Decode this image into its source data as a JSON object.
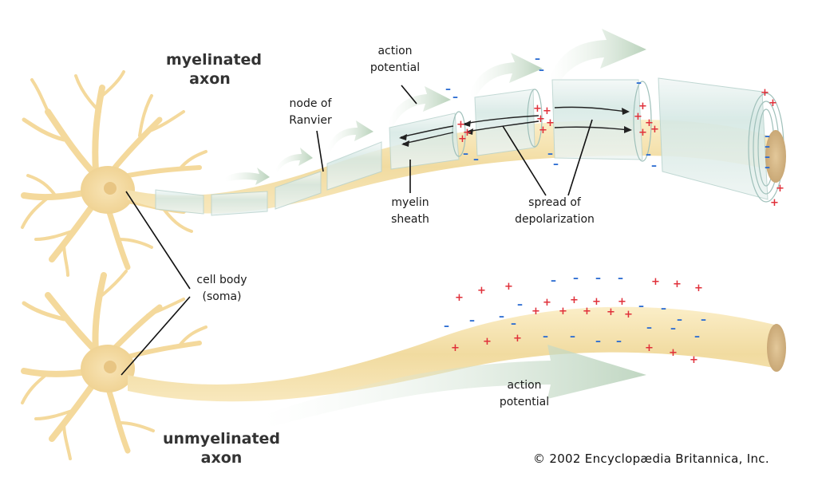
{
  "labels": {
    "myelinated_l1": "myelinated",
    "myelinated_l2": "axon",
    "action_potential_top_l1": "action",
    "action_potential_top_l2": "potential",
    "node_l1": "node of",
    "node_l2": "Ranvier",
    "myelin_l1": "myelin",
    "myelin_l2": "sheath",
    "spread_l1": "spread of",
    "spread_l2": "depolarization",
    "cell_body_l1": "cell body",
    "cell_body_l2": "(soma)",
    "action_potential_bottom_l1": "action",
    "action_potential_bottom_l2": "potential",
    "unmyelinated_l1": "unmyelinated",
    "unmyelinated_l2": "axon"
  },
  "copyright": "© 2002 Encyclopædia Britannica, Inc.",
  "colors": {
    "neuron": "#f6dca0",
    "axon": "#f3e2b0",
    "myelin": "#d9ebe7",
    "arrow": "#c6dcc6",
    "plus": "#e0303a",
    "minus": "#2a6bd1",
    "line": "#111111"
  }
}
